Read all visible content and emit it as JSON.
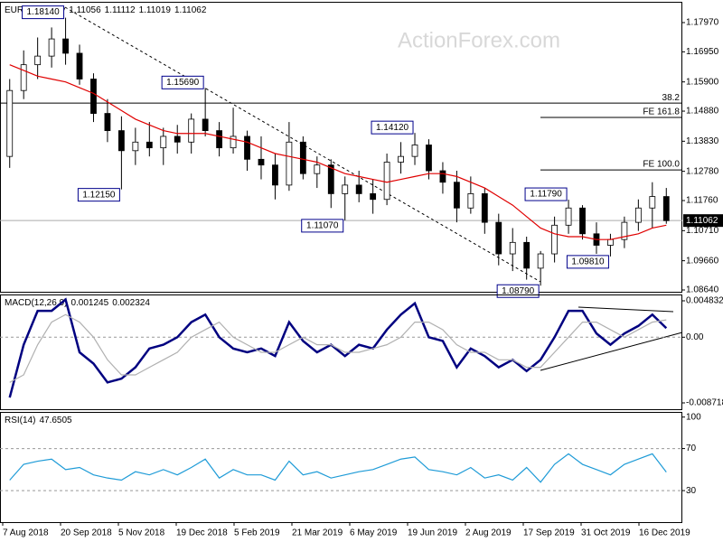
{
  "chart_data": [
    {
      "type": "candlestick",
      "title": "EURUSD,Daily",
      "quote": [
        1.11056,
        1.11112,
        1.11019,
        1.11062
      ],
      "watermark": "ActionForex.com",
      "ylim": [
        1.08577,
        1.18695
      ],
      "yticks": [
        {
          "value": 1.1797,
          "label": "1.17970"
        },
        {
          "value": 1.1695,
          "label": "1.16950"
        },
        {
          "value": 1.159,
          "label": "1.15900"
        },
        {
          "value": 1.1488,
          "label": "1.14880"
        },
        {
          "value": 1.1383,
          "label": "1.13830"
        },
        {
          "value": 1.1278,
          "label": "1.12780"
        },
        {
          "value": 1.1176,
          "label": "1.11760"
        },
        {
          "value": 1.1071,
          "label": "1.10710"
        },
        {
          "value": 1.0966,
          "label": "1.09660"
        },
        {
          "value": 1.0864,
          "label": "1.08640"
        }
      ],
      "open": [
        1.133,
        1.156,
        1.165,
        1.168,
        1.174,
        1.169,
        1.16,
        1.148,
        1.142,
        1.135,
        1.138,
        1.136,
        1.14,
        1.138,
        1.146,
        1.142,
        1.136,
        1.14,
        1.132,
        1.13,
        1.123,
        1.138,
        1.127,
        1.13,
        1.12,
        1.123,
        1.12,
        1.118,
        1.131,
        1.133,
        1.137,
        1.128,
        1.124,
        1.115,
        1.12,
        1.11,
        1.099,
        1.103,
        1.094,
        1.099,
        1.109,
        1.115,
        1.106,
        1.102,
        1.104,
        1.11,
        1.115,
        1.119
      ],
      "high": [
        1.16,
        1.17,
        1.1745,
        1.178,
        1.1814,
        1.172,
        1.162,
        1.153,
        1.147,
        1.143,
        1.145,
        1.143,
        1.144,
        1.148,
        1.1569,
        1.145,
        1.15,
        1.142,
        1.14,
        1.134,
        1.145,
        1.14,
        1.133,
        1.132,
        1.126,
        1.128,
        1.125,
        1.134,
        1.138,
        1.1412,
        1.139,
        1.131,
        1.128,
        1.126,
        1.122,
        1.113,
        1.108,
        1.105,
        1.1,
        1.112,
        1.1179,
        1.116,
        1.11,
        1.106,
        1.112,
        1.118,
        1.124,
        1.122
      ],
      "low": [
        1.129,
        1.153,
        1.16,
        1.164,
        1.165,
        1.158,
        1.145,
        1.138,
        1.1215,
        1.13,
        1.133,
        1.13,
        1.134,
        1.134,
        1.14,
        1.133,
        1.134,
        1.128,
        1.125,
        1.118,
        1.121,
        1.125,
        1.122,
        1.115,
        1.1107,
        1.117,
        1.113,
        1.116,
        1.127,
        1.13,
        1.125,
        1.12,
        1.11,
        1.113,
        1.106,
        1.095,
        1.093,
        1.09,
        1.0879,
        1.096,
        1.106,
        1.104,
        1.099,
        1.0981,
        1.101,
        1.107,
        1.108,
        1.1095
      ],
      "close": [
        1.156,
        1.165,
        1.168,
        1.174,
        1.169,
        1.16,
        1.148,
        1.142,
        1.135,
        1.138,
        1.136,
        1.14,
        1.138,
        1.146,
        1.142,
        1.136,
        1.14,
        1.132,
        1.13,
        1.123,
        1.138,
        1.127,
        1.13,
        1.12,
        1.123,
        1.12,
        1.118,
        1.131,
        1.133,
        1.137,
        1.128,
        1.124,
        1.115,
        1.12,
        1.11,
        1.099,
        1.103,
        1.094,
        1.099,
        1.109,
        1.115,
        1.106,
        1.102,
        1.104,
        1.11,
        1.115,
        1.119,
        1.1106
      ],
      "ma_color": "#e00000",
      "ma_values": [
        1.165,
        1.163,
        1.161,
        1.16,
        1.159,
        1.157,
        1.155,
        1.152,
        1.149,
        1.146,
        1.144,
        1.142,
        1.141,
        1.141,
        1.141,
        1.14,
        1.139,
        1.138,
        1.136,
        1.134,
        1.133,
        1.132,
        1.131,
        1.129,
        1.127,
        1.126,
        1.125,
        1.124,
        1.125,
        1.126,
        1.127,
        1.127,
        1.126,
        1.124,
        1.122,
        1.119,
        1.116,
        1.112,
        1.108,
        1.106,
        1.105,
        1.105,
        1.104,
        1.104,
        1.105,
        1.106,
        1.108,
        1.109
      ],
      "levels": [
        {
          "label": "38.2",
          "value": 1.1516
        },
        {
          "label": "FE 161.8",
          "value": 1.1466
        },
        {
          "label": "FE 100.0",
          "value": 1.1283
        }
      ],
      "annotations": [
        {
          "value": 1.1814,
          "label": "1.18140"
        },
        {
          "value": 1.1569,
          "label": "1.15690"
        },
        {
          "value": 1.1215,
          "label": "1.12150"
        },
        {
          "value": 1.1107,
          "label": "1.11070"
        },
        {
          "value": 1.1412,
          "label": "1.14120"
        },
        {
          "value": 1.1179,
          "label": "1.11790"
        },
        {
          "value": 1.0981,
          "label": "1.09810"
        },
        {
          "value": 1.0879,
          "label": "1.08790"
        }
      ]
    },
    {
      "type": "line",
      "title": "MACD(12,26,9)",
      "readings": [
        0.001245,
        0.002324
      ],
      "ylim": [
        -0.009557,
        0.005671
      ],
      "yticks": [
        0.004832,
        {
          "value": 0,
          "label": "0.00"
        },
        -0.008718
      ],
      "grid": [
        0
      ],
      "series": [
        {
          "color": "#000080",
          "values": [
            -0.008,
            -0.001,
            0.0035,
            0.0035,
            0.005,
            -0.002,
            -0.0035,
            -0.006,
            -0.0055,
            -0.004,
            -0.0015,
            -0.001,
            0,
            0.002,
            0.003,
            0,
            -0.0015,
            -0.002,
            -0.0015,
            -0.0025,
            0.002,
            -0.0005,
            -0.002,
            -0.001,
            -0.0025,
            -0.001,
            -0.0015,
            0.001,
            0.003,
            0.0045,
            0,
            -0.0005,
            -0.004,
            -0.0015,
            -0.0025,
            -0.004,
            -0.003,
            -0.0045,
            -0.003,
            0,
            0.0035,
            0.0035,
            0.0005,
            -0.001,
            0.0005,
            0.0015,
            0.003,
            0.0012
          ]
        },
        {
          "color": "#b0b0b0",
          "values": [
            -0.006,
            -0.005,
            -0.001,
            0.002,
            0.003,
            0.002,
            0,
            -0.003,
            -0.005,
            -0.005,
            -0.004,
            -0.003,
            -0.002,
            0,
            0.001,
            0.002,
            0,
            -0.001,
            -0.002,
            -0.002,
            -0.001,
            0,
            -0.001,
            -0.001,
            -0.002,
            -0.002,
            -0.0015,
            -0.001,
            0,
            0.002,
            0.002,
            0.001,
            -0.001,
            -0.002,
            -0.002,
            -0.003,
            -0.003,
            -0.004,
            -0.004,
            -0.002,
            0,
            0.002,
            0.002,
            0.001,
            0,
            0.001,
            0.002,
            0.0023
          ]
        }
      ]
    },
    {
      "type": "line",
      "title": "RSI(14)",
      "readings": [
        47.6505
      ],
      "ylim": [
        0,
        104.9
      ],
      "yticks": [
        100,
        70,
        30
      ],
      "grid": [
        70,
        30
      ],
      "series": [
        {
          "color": "#1e9bd7",
          "values": [
            40,
            55,
            58,
            60,
            50,
            52,
            45,
            42,
            40,
            48,
            45,
            50,
            45,
            52,
            60,
            42,
            50,
            45,
            45,
            40,
            58,
            45,
            48,
            42,
            45,
            48,
            50,
            55,
            60,
            62,
            50,
            48,
            45,
            52,
            42,
            45,
            40,
            52,
            38,
            55,
            65,
            55,
            50,
            45,
            55,
            60,
            65,
            47.65
          ]
        }
      ],
      "x_labels": [
        "7 Aug 2018",
        "20 Sep 2018",
        "5 Nov 2018",
        "19 Dec 2018",
        "5 Feb 2019",
        "21 Mar 2019",
        "6 May 2019",
        "19 Jun 2019",
        "2 Aug 2019",
        "17 Sep 2019",
        "31 Oct 2019",
        "16 Dec 2019"
      ]
    }
  ]
}
